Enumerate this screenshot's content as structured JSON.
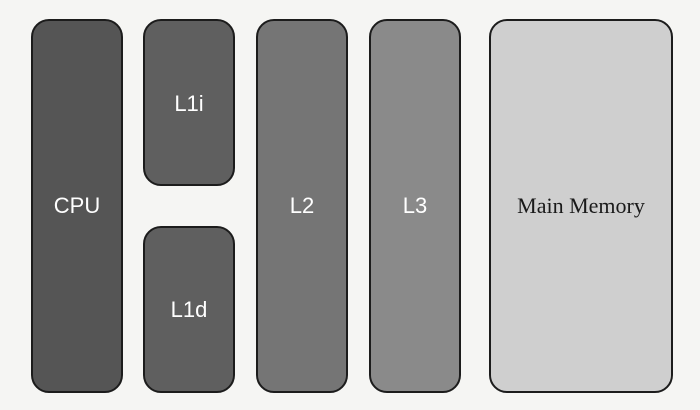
{
  "blocks": {
    "cpu": {
      "label": "CPU"
    },
    "l1i": {
      "label": "L1i"
    },
    "l1d": {
      "label": "L1d"
    },
    "l2": {
      "label": "L2"
    },
    "l3": {
      "label": "L3"
    },
    "main_memory": {
      "label": "Main Memory"
    }
  }
}
